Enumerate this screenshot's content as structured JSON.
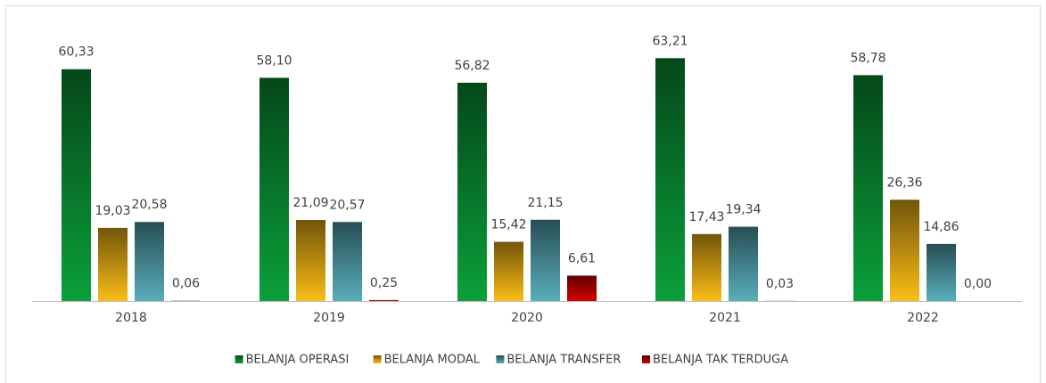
{
  "chart_data": {
    "type": "bar",
    "categories": [
      "2018",
      "2019",
      "2020",
      "2021",
      "2022"
    ],
    "series": [
      {
        "name": "BELANJA OPERASI",
        "color": "#0aa03a",
        "values": [
          60.33,
          58.1,
          56.82,
          63.21,
          58.78
        ],
        "value_labels": [
          "60,33",
          "58,10",
          "56,82",
          "63,21",
          "58,78"
        ]
      },
      {
        "name": "BELANJA MODAL",
        "color": "#fbbd16",
        "values": [
          19.03,
          21.09,
          15.42,
          17.43,
          26.36
        ],
        "value_labels": [
          "19,03",
          "21,09",
          "15,42",
          "17,43",
          "26,36"
        ]
      },
      {
        "name": "BELANJA TRANSFER",
        "color": "#58aebb",
        "values": [
          20.58,
          20.57,
          21.15,
          19.34,
          14.86
        ],
        "value_labels": [
          "20,58",
          "20,57",
          "21,15",
          "19,34",
          "14,86"
        ]
      },
      {
        "name": "BELANJA TAK TERDUGA",
        "color": "#d40000",
        "values": [
          0.06,
          0.25,
          6.61,
          0.03,
          0.0
        ],
        "value_labels": [
          "0,06",
          "0,25",
          "6,61",
          "0,03",
          "0,00"
        ]
      }
    ],
    "ylim": [
      0,
      70
    ]
  }
}
